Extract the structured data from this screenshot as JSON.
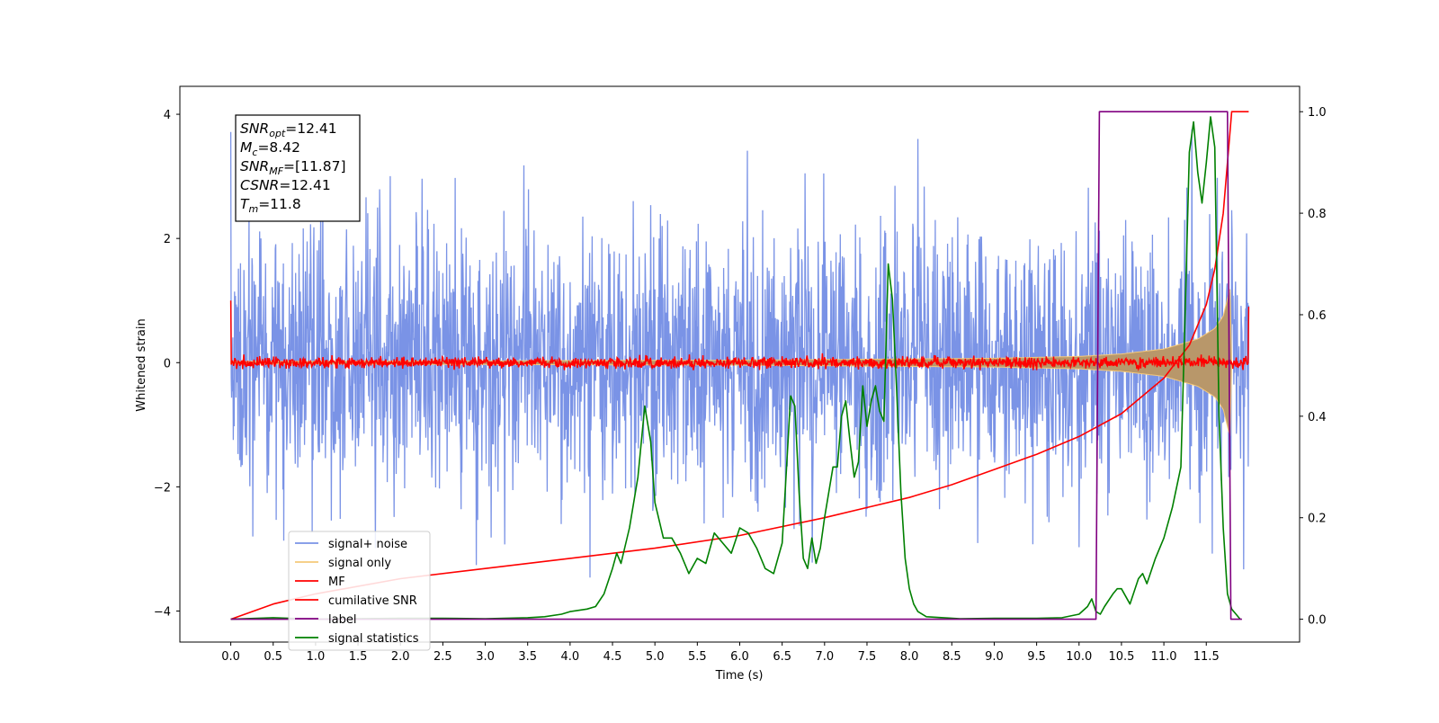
{
  "chart_data": {
    "type": "line",
    "xlabel": "Time (s)",
    "ylabel": "Whitened strain",
    "xlim": [
      -0.6,
      12.6
    ],
    "ylim_left": [
      -4.5,
      4.45
    ],
    "ylim_right": [
      -0.045,
      1.05
    ],
    "x_ticks": [
      0.0,
      0.5,
      1.0,
      1.5,
      2.0,
      2.5,
      3.0,
      3.5,
      4.0,
      4.5,
      5.0,
      5.5,
      6.0,
      6.5,
      7.0,
      7.5,
      8.0,
      8.5,
      9.0,
      9.5,
      10.0,
      10.5,
      11.0,
      11.5
    ],
    "x_tick_labels": [
      "0.0",
      "0.5",
      "1.0",
      "1.5",
      "2.0",
      "2.5",
      "3.0",
      "3.5",
      "4.0",
      "4.5",
      "5.0",
      "5.5",
      "6.0",
      "6.5",
      "7.0",
      "7.5",
      "8.0",
      "8.5",
      "9.0",
      "9.5",
      "10.0",
      "10.5",
      "11.0",
      "11.5"
    ],
    "y_ticks_left": [
      -4,
      -2,
      0,
      2,
      4
    ],
    "y_tick_labels_left": [
      "−4",
      "−2",
      "0",
      "2",
      "4"
    ],
    "y_ticks_right": [
      0.0,
      0.2,
      0.4,
      0.6,
      0.8,
      1.0
    ],
    "y_tick_labels_right": [
      "0.0",
      "0.2",
      "0.4",
      "0.6",
      "0.8",
      "1.0"
    ],
    "annotation": [
      {
        "main": "SNR",
        "sub": "opt",
        "value": "=12.41"
      },
      {
        "main": "M",
        "sub": "c",
        "value": "=8.42"
      },
      {
        "main": "SNR",
        "sub": "MF",
        "value": "=[11.87]"
      },
      {
        "main": "CSNR",
        "sub": "",
        "value": "=12.41"
      },
      {
        "main": "T",
        "sub": "m",
        "value": "=11.8"
      }
    ],
    "legend_position": "lower-left",
    "series": [
      {
        "name": "signal+ noise",
        "axis": "left",
        "color": "#7a93e6",
        "style": "noise",
        "duration": 12.0,
        "noise_std_strain": 1.05,
        "peak_range_strain": [
          -4.0,
          4.0
        ]
      },
      {
        "name": "signal only",
        "axis": "left",
        "color": "#f5c97a",
        "style": "chirp-envelope",
        "envelope_x": [
          0,
          6,
          9,
          10,
          10.5,
          11,
          11.4,
          11.6,
          11.7,
          11.78,
          11.8
        ],
        "envelope_y": [
          0.02,
          0.04,
          0.07,
          0.1,
          0.14,
          0.22,
          0.38,
          0.55,
          0.75,
          1.2,
          0.0
        ]
      },
      {
        "name": "MF",
        "axis": "left",
        "color": "#ff0000",
        "style": "noise-band",
        "duration": 12.0,
        "band_strain": [
          -0.12,
          0.18
        ],
        "start_value": 1.0,
        "end_value": 0.9
      },
      {
        "name": "cumilative SNR",
        "axis": "right",
        "color": "#ff0000",
        "x": [
          0.0,
          0.5,
          1.0,
          2.0,
          3.0,
          4.0,
          5.0,
          6.0,
          7.0,
          7.5,
          8.0,
          8.5,
          9.0,
          9.5,
          10.0,
          10.5,
          11.0,
          11.3,
          11.5,
          11.6,
          11.7,
          11.75,
          11.8,
          12.0
        ],
        "y": [
          0.0,
          0.03,
          0.05,
          0.08,
          0.1,
          0.12,
          0.14,
          0.165,
          0.2,
          0.22,
          0.24,
          0.265,
          0.295,
          0.325,
          0.36,
          0.405,
          0.475,
          0.54,
          0.62,
          0.69,
          0.8,
          0.9,
          1.0,
          1.0
        ]
      },
      {
        "name": "label",
        "axis": "right",
        "color": "#800080",
        "x": [
          0.0,
          10.2,
          10.24,
          11.75,
          11.79,
          11.92
        ],
        "y": [
          0.0,
          0.0,
          1.0,
          1.0,
          0.0,
          0.0
        ]
      },
      {
        "name": "signal statistics",
        "axis": "right",
        "color": "#008000",
        "x": [
          0.0,
          0.5,
          1.0,
          1.5,
          2.0,
          2.5,
          3.0,
          3.5,
          3.7,
          3.9,
          4.0,
          4.2,
          4.3,
          4.4,
          4.5,
          4.55,
          4.6,
          4.7,
          4.8,
          4.88,
          4.95,
          5.0,
          5.1,
          5.2,
          5.3,
          5.4,
          5.5,
          5.6,
          5.7,
          5.8,
          5.9,
          6.0,
          6.1,
          6.2,
          6.3,
          6.4,
          6.5,
          6.6,
          6.65,
          6.7,
          6.75,
          6.8,
          6.85,
          6.9,
          6.95,
          7.0,
          7.05,
          7.1,
          7.15,
          7.2,
          7.25,
          7.3,
          7.35,
          7.4,
          7.45,
          7.5,
          7.55,
          7.6,
          7.65,
          7.7,
          7.75,
          7.8,
          7.85,
          7.9,
          7.95,
          8.0,
          8.05,
          8.1,
          8.2,
          8.4,
          8.6,
          9.0,
          9.5,
          9.8,
          10.0,
          10.1,
          10.15,
          10.2,
          10.25,
          10.3,
          10.4,
          10.45,
          10.5,
          10.6,
          10.7,
          10.75,
          10.8,
          10.9,
          11.0,
          11.1,
          11.2,
          11.25,
          11.3,
          11.35,
          11.4,
          11.45,
          11.5,
          11.55,
          11.6,
          11.65,
          11.7,
          11.75,
          11.8,
          11.85,
          11.9
        ],
        "y": [
          0.0,
          0.003,
          0.0,
          0.001,
          0.002,
          0.002,
          0.001,
          0.003,
          0.005,
          0.01,
          0.015,
          0.02,
          0.025,
          0.05,
          0.1,
          0.13,
          0.11,
          0.18,
          0.28,
          0.42,
          0.35,
          0.23,
          0.16,
          0.16,
          0.13,
          0.09,
          0.12,
          0.11,
          0.17,
          0.15,
          0.13,
          0.18,
          0.17,
          0.14,
          0.1,
          0.09,
          0.15,
          0.44,
          0.42,
          0.25,
          0.12,
          0.1,
          0.16,
          0.11,
          0.14,
          0.2,
          0.25,
          0.3,
          0.3,
          0.4,
          0.43,
          0.35,
          0.28,
          0.31,
          0.46,
          0.38,
          0.43,
          0.46,
          0.41,
          0.39,
          0.7,
          0.63,
          0.45,
          0.25,
          0.12,
          0.06,
          0.03,
          0.015,
          0.005,
          0.003,
          0.001,
          0.002,
          0.002,
          0.003,
          0.01,
          0.025,
          0.04,
          0.015,
          0.01,
          0.025,
          0.05,
          0.06,
          0.06,
          0.03,
          0.08,
          0.09,
          0.07,
          0.12,
          0.16,
          0.22,
          0.3,
          0.6,
          0.92,
          0.98,
          0.88,
          0.82,
          0.9,
          0.99,
          0.93,
          0.4,
          0.18,
          0.05,
          0.02,
          0.01,
          0.0
        ]
      }
    ]
  }
}
